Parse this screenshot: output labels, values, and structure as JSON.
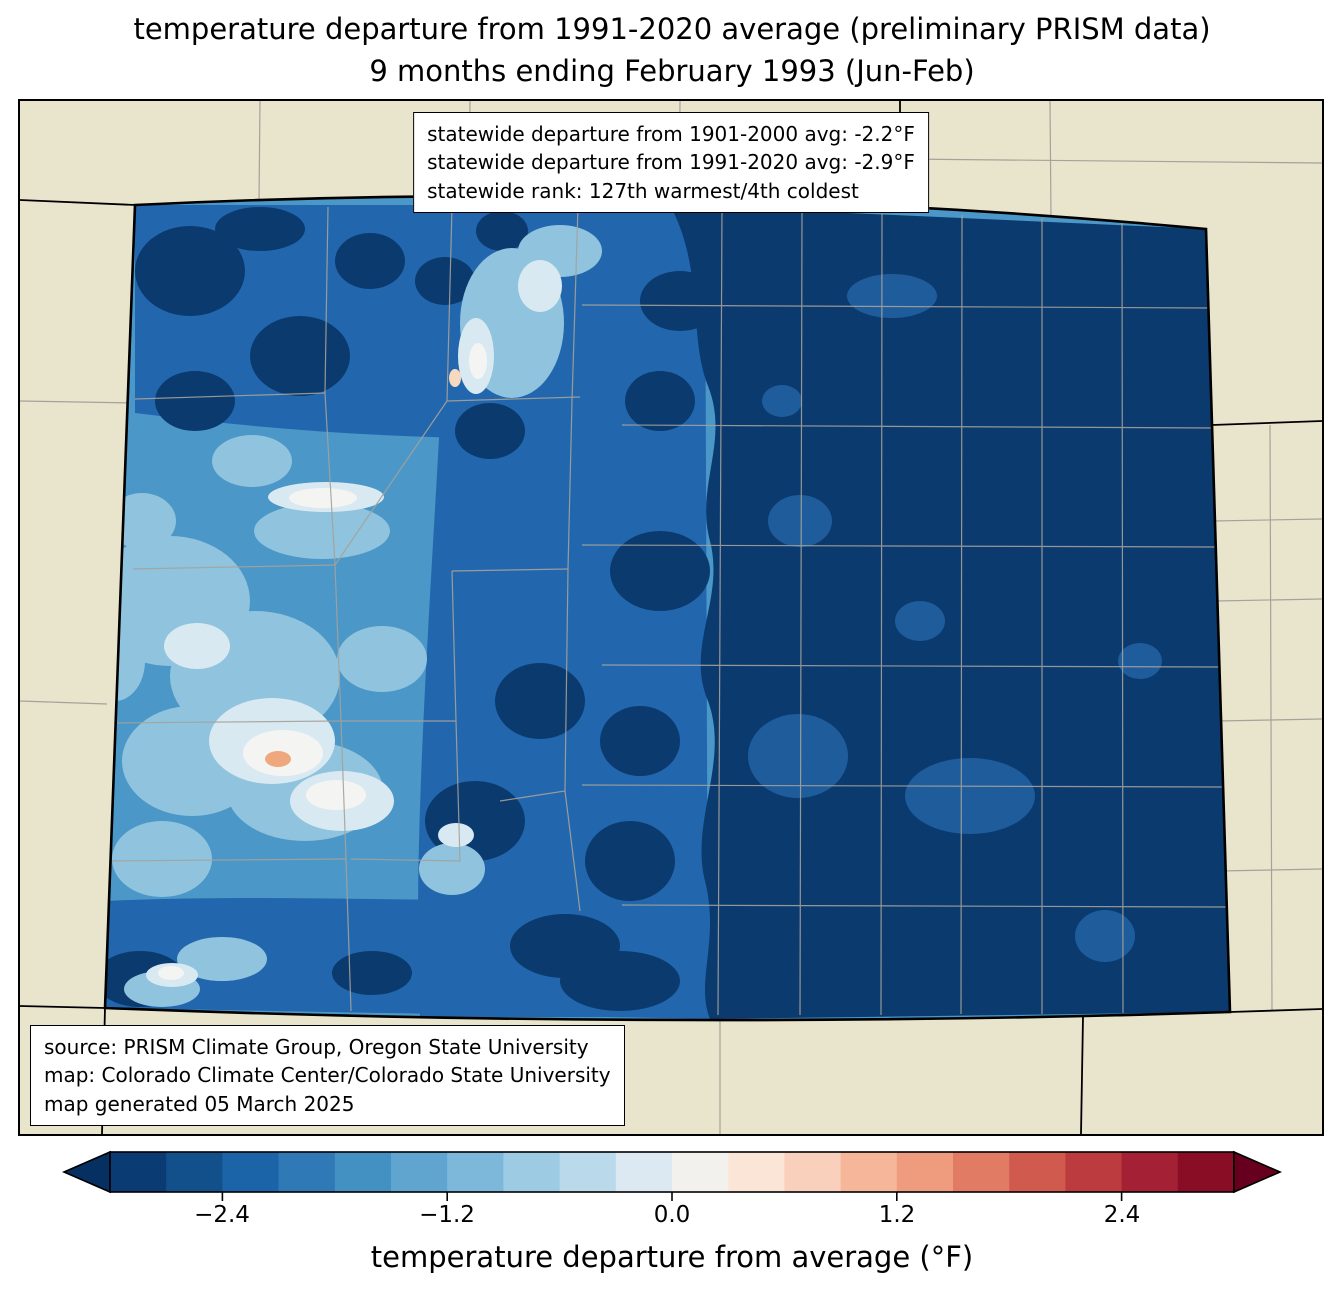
{
  "title": {
    "line1": "temperature departure from 1991-2020 average (preliminary PRISM data)",
    "line2": "9 months ending February 1993 (Jun-Feb)"
  },
  "stats_box": {
    "lines": [
      "statewide departure from 1901-2000 avg: -2.2°F",
      "statewide departure from 1991-2020 avg: -2.9°F",
      "statewide rank: 127th warmest/4th coldest"
    ]
  },
  "source_box": {
    "lines": [
      "source: PRISM Climate Group, Oregon State University",
      "map: Colorado Climate Center/Colorado State University",
      "map generated 05 March 2025"
    ]
  },
  "colorbar": {
    "label": "temperature departure from average (°F)",
    "ticks": [
      "−2.4",
      "−1.2",
      "0.0",
      "1.2",
      "2.4"
    ],
    "range": [
      -3.0,
      3.0
    ],
    "segment_step": 0.3,
    "under_color": "#053061",
    "over_color": "#67001f",
    "colors": [
      "#0a3b73",
      "#12508c",
      "#1b64a7",
      "#2e79b6",
      "#4390c2",
      "#5fa5cf",
      "#7db8da",
      "#9ccbe3",
      "#bad9ea",
      "#dce9f2",
      "#f3f1ee",
      "#fbe5d7",
      "#f9d0bb",
      "#f5b699",
      "#ef9b7e",
      "#e17b64",
      "#d05a4e",
      "#bc3b3e",
      "#a42034",
      "#8a0d26"
    ]
  },
  "map": {
    "region": "Colorado",
    "palette": {
      "background": "#e9e4cc",
      "base": "#4a97c8",
      "medium": "#2267ad",
      "navy": "#0b3a6f",
      "navy_spot": "#1e5c9b",
      "light": "#8fc3de",
      "lighter": "#d9e9f2",
      "white": "#f4f5f2",
      "orange": "#efa87e",
      "pale_orange": "#f7d8c0",
      "county_line": "#a6a29a",
      "state_line": "#000000"
    }
  }
}
